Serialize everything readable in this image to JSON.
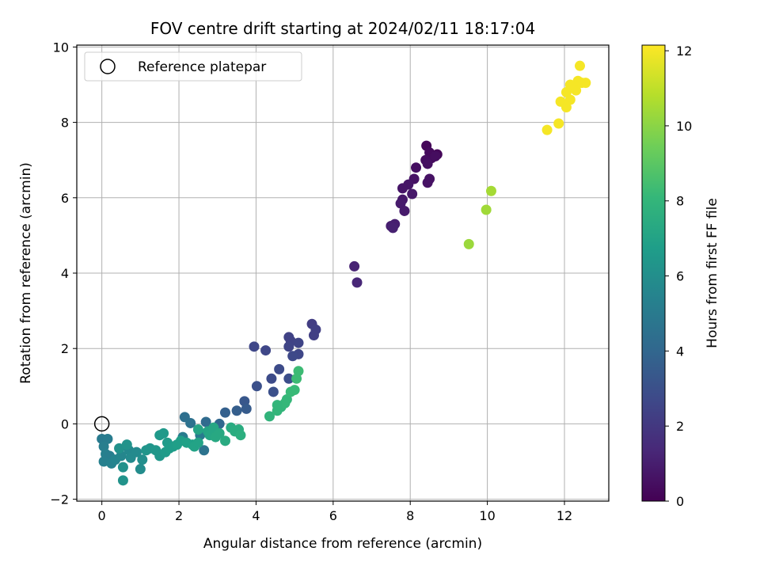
{
  "chart_data": {
    "type": "scatter",
    "title": "FOV centre drift starting at 2024/02/11 18:17:04",
    "xlabel": "Angular distance from reference (arcmin)",
    "ylabel": "Rotation from reference (arcmin)",
    "xlim": [
      -0.65,
      13.15
    ],
    "ylim": [
      -2.05,
      10.05
    ],
    "xticks": [
      0,
      2,
      4,
      6,
      8,
      10,
      12
    ],
    "yticks": [
      -2,
      0,
      2,
      4,
      6,
      8,
      10
    ],
    "grid": true,
    "legend": {
      "position": "top-left",
      "entries": [
        "Reference platepar"
      ]
    },
    "reference_point": {
      "x": 0,
      "y": 0
    },
    "colorbar": {
      "label": "Hours from first FF file",
      "colormap": "viridis",
      "range": [
        0,
        12.15
      ],
      "ticks": [
        0,
        2,
        4,
        6,
        8,
        10,
        12
      ]
    },
    "colormap_stops": [
      "#440154",
      "#482878",
      "#3e4989",
      "#31688e",
      "#26828e",
      "#1f9e89",
      "#35b779",
      "#6ece58",
      "#b5de2b",
      "#fde725"
    ],
    "points": [
      {
        "x": 8.42,
        "y": 7.38,
        "t": 0.2
      },
      {
        "x": 8.5,
        "y": 7.2,
        "t": 0.3
      },
      {
        "x": 8.55,
        "y": 7.05,
        "t": 0.3
      },
      {
        "x": 8.7,
        "y": 7.15,
        "t": 0.2
      },
      {
        "x": 8.65,
        "y": 7.1,
        "t": 0.4
      },
      {
        "x": 8.4,
        "y": 7.0,
        "t": 0.4
      },
      {
        "x": 8.45,
        "y": 6.9,
        "t": 0.5
      },
      {
        "x": 8.15,
        "y": 6.8,
        "t": 0.5
      },
      {
        "x": 8.1,
        "y": 6.5,
        "t": 0.6
      },
      {
        "x": 8.5,
        "y": 6.5,
        "t": 0.6
      },
      {
        "x": 8.45,
        "y": 6.4,
        "t": 0.6
      },
      {
        "x": 7.95,
        "y": 6.35,
        "t": 0.7
      },
      {
        "x": 7.8,
        "y": 6.25,
        "t": 0.7
      },
      {
        "x": 8.05,
        "y": 6.1,
        "t": 0.8
      },
      {
        "x": 7.8,
        "y": 5.95,
        "t": 0.8
      },
      {
        "x": 7.75,
        "y": 5.85,
        "t": 0.9
      },
      {
        "x": 7.85,
        "y": 5.65,
        "t": 0.9
      },
      {
        "x": 7.6,
        "y": 5.3,
        "t": 1.0
      },
      {
        "x": 7.5,
        "y": 5.25,
        "t": 1.0
      },
      {
        "x": 7.55,
        "y": 5.2,
        "t": 1.1
      },
      {
        "x": 6.55,
        "y": 4.18,
        "t": 1.2
      },
      {
        "x": 6.62,
        "y": 3.75,
        "t": 1.3
      },
      {
        "x": 5.45,
        "y": 2.65,
        "t": 2.2
      },
      {
        "x": 5.55,
        "y": 2.5,
        "t": 2.3
      },
      {
        "x": 5.5,
        "y": 2.35,
        "t": 2.3
      },
      {
        "x": 4.85,
        "y": 2.3,
        "t": 2.4
      },
      {
        "x": 4.9,
        "y": 2.2,
        "t": 2.4
      },
      {
        "x": 5.1,
        "y": 2.15,
        "t": 2.5
      },
      {
        "x": 4.85,
        "y": 2.05,
        "t": 2.5
      },
      {
        "x": 3.95,
        "y": 2.05,
        "t": 2.6
      },
      {
        "x": 4.25,
        "y": 1.95,
        "t": 2.6
      },
      {
        "x": 5.1,
        "y": 1.85,
        "t": 2.6
      },
      {
        "x": 4.95,
        "y": 1.8,
        "t": 2.7
      },
      {
        "x": 4.6,
        "y": 1.45,
        "t": 2.8
      },
      {
        "x": 4.4,
        "y": 1.2,
        "t": 2.8
      },
      {
        "x": 4.85,
        "y": 1.2,
        "t": 2.9
      },
      {
        "x": 4.02,
        "y": 1.0,
        "t": 3.0
      },
      {
        "x": 4.45,
        "y": 0.85,
        "t": 3.0
      },
      {
        "x": 3.7,
        "y": 0.6,
        "t": 3.3
      },
      {
        "x": 3.75,
        "y": 0.4,
        "t": 3.5
      },
      {
        "x": 3.5,
        "y": 0.35,
        "t": 3.6
      },
      {
        "x": 3.2,
        "y": 0.3,
        "t": 3.7
      },
      {
        "x": 2.15,
        "y": 0.18,
        "t": 4.4
      },
      {
        "x": 2.7,
        "y": 0.05,
        "t": 4.2
      },
      {
        "x": 3.05,
        "y": 0.0,
        "t": 4.0
      },
      {
        "x": 2.3,
        "y": 0.02,
        "t": 4.5
      },
      {
        "x": 2.65,
        "y": -0.7,
        "t": 4.6
      },
      {
        "x": 2.55,
        "y": -0.3,
        "t": 5.0
      },
      {
        "x": 2.1,
        "y": -0.35,
        "t": 5.1
      },
      {
        "x": 0.0,
        "y": -0.4,
        "t": 5.0
      },
      {
        "x": 0.15,
        "y": -0.4,
        "t": 5.1
      },
      {
        "x": 0.05,
        "y": -0.6,
        "t": 5.2
      },
      {
        "x": 0.1,
        "y": -0.8,
        "t": 5.3
      },
      {
        "x": 0.2,
        "y": -0.85,
        "t": 5.2
      },
      {
        "x": 0.05,
        "y": -1.0,
        "t": 5.3
      },
      {
        "x": 0.25,
        "y": -1.05,
        "t": 5.4
      },
      {
        "x": 0.35,
        "y": -0.95,
        "t": 5.5
      },
      {
        "x": 0.5,
        "y": -0.85,
        "t": 5.6
      },
      {
        "x": 0.7,
        "y": -0.7,
        "t": 5.7
      },
      {
        "x": 0.75,
        "y": -0.9,
        "t": 5.8
      },
      {
        "x": 0.9,
        "y": -0.75,
        "t": 5.8
      },
      {
        "x": 1.0,
        "y": -1.2,
        "t": 5.9
      },
      {
        "x": 1.05,
        "y": -0.95,
        "t": 6.0
      },
      {
        "x": 0.55,
        "y": -1.15,
        "t": 6.1
      },
      {
        "x": 0.55,
        "y": -1.5,
        "t": 6.2
      },
      {
        "x": 0.45,
        "y": -0.65,
        "t": 6.1
      },
      {
        "x": 0.65,
        "y": -0.55,
        "t": 6.2
      },
      {
        "x": 1.15,
        "y": -0.7,
        "t": 6.3
      },
      {
        "x": 1.25,
        "y": -0.65,
        "t": 6.3
      },
      {
        "x": 1.4,
        "y": -0.7,
        "t": 6.4
      },
      {
        "x": 1.5,
        "y": -0.85,
        "t": 6.4
      },
      {
        "x": 1.5,
        "y": -0.3,
        "t": 6.5
      },
      {
        "x": 1.6,
        "y": -0.25,
        "t": 6.5
      },
      {
        "x": 1.7,
        "y": -0.5,
        "t": 6.6
      },
      {
        "x": 1.65,
        "y": -0.75,
        "t": 6.6
      },
      {
        "x": 1.75,
        "y": -0.65,
        "t": 6.7
      },
      {
        "x": 1.85,
        "y": -0.6,
        "t": 6.7
      },
      {
        "x": 1.95,
        "y": -0.55,
        "t": 6.8
      },
      {
        "x": 2.05,
        "y": -0.45,
        "t": 6.8
      },
      {
        "x": 2.2,
        "y": -0.5,
        "t": 6.9
      },
      {
        "x": 2.35,
        "y": -0.55,
        "t": 6.9
      },
      {
        "x": 2.4,
        "y": -0.6,
        "t": 7.0
      },
      {
        "x": 2.5,
        "y": -0.5,
        "t": 7.0
      },
      {
        "x": 2.5,
        "y": -0.15,
        "t": 7.1
      },
      {
        "x": 2.75,
        "y": -0.2,
        "t": 7.1
      },
      {
        "x": 2.8,
        "y": -0.3,
        "t": 7.2
      },
      {
        "x": 2.9,
        "y": -0.1,
        "t": 7.2
      },
      {
        "x": 2.95,
        "y": -0.35,
        "t": 7.3
      },
      {
        "x": 3.05,
        "y": -0.25,
        "t": 7.3
      },
      {
        "x": 3.2,
        "y": -0.45,
        "t": 7.4
      },
      {
        "x": 3.35,
        "y": -0.1,
        "t": 7.4
      },
      {
        "x": 3.45,
        "y": -0.2,
        "t": 7.5
      },
      {
        "x": 3.55,
        "y": -0.15,
        "t": 7.5
      },
      {
        "x": 3.6,
        "y": -0.3,
        "t": 7.6
      },
      {
        "x": 4.35,
        "y": 0.2,
        "t": 7.9
      },
      {
        "x": 4.55,
        "y": 0.35,
        "t": 8.0
      },
      {
        "x": 4.65,
        "y": 0.45,
        "t": 8.0
      },
      {
        "x": 4.75,
        "y": 0.55,
        "t": 8.1
      },
      {
        "x": 4.8,
        "y": 0.65,
        "t": 8.1
      },
      {
        "x": 4.9,
        "y": 0.85,
        "t": 8.2
      },
      {
        "x": 5.0,
        "y": 0.9,
        "t": 8.2
      },
      {
        "x": 5.05,
        "y": 1.2,
        "t": 8.3
      },
      {
        "x": 5.1,
        "y": 1.4,
        "t": 8.3
      },
      {
        "x": 4.55,
        "y": 0.5,
        "t": 8.0
      },
      {
        "x": 9.52,
        "y": 4.77,
        "t": 10.3
      },
      {
        "x": 9.97,
        "y": 5.68,
        "t": 10.4
      },
      {
        "x": 10.1,
        "y": 6.18,
        "t": 10.5
      },
      {
        "x": 11.55,
        "y": 7.8,
        "t": 12.0
      },
      {
        "x": 11.85,
        "y": 7.97,
        "t": 12.0
      },
      {
        "x": 11.9,
        "y": 8.55,
        "t": 12.0
      },
      {
        "x": 12.05,
        "y": 8.4,
        "t": 12.0
      },
      {
        "x": 12.05,
        "y": 8.8,
        "t": 12.0
      },
      {
        "x": 12.15,
        "y": 8.6,
        "t": 12.0
      },
      {
        "x": 12.2,
        "y": 8.95,
        "t": 12.0
      },
      {
        "x": 12.3,
        "y": 8.85,
        "t": 12.0
      },
      {
        "x": 12.35,
        "y": 9.1,
        "t": 12.0
      },
      {
        "x": 12.4,
        "y": 9.5,
        "t": 12.0
      },
      {
        "x": 12.45,
        "y": 9.05,
        "t": 12.0
      },
      {
        "x": 12.55,
        "y": 9.05,
        "t": 12.0
      },
      {
        "x": 12.15,
        "y": 9.0,
        "t": 12.0
      }
    ]
  }
}
